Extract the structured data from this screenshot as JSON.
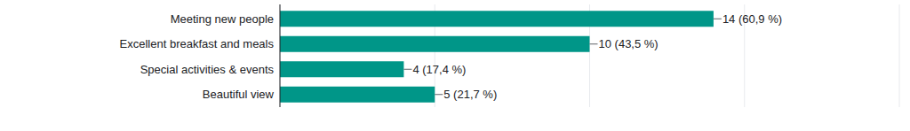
{
  "chart_data": {
    "type": "bar",
    "orientation": "horizontal",
    "categories": [
      "Meeting new people",
      "Excellent breakfast and meals",
      "Special activities & events",
      "Beautiful view"
    ],
    "values": [
      14,
      10,
      4,
      5
    ],
    "value_labels": [
      "14 (60,9 %)",
      "10 (43,5 %)",
      "4 (17,4 %)",
      "5 (21,7 %)"
    ],
    "color": "#009688",
    "xlim": [
      0,
      20
    ],
    "xticks": [
      0,
      5,
      10,
      15,
      20
    ],
    "grid": true,
    "data_labels": true,
    "tick_labels": false
  }
}
